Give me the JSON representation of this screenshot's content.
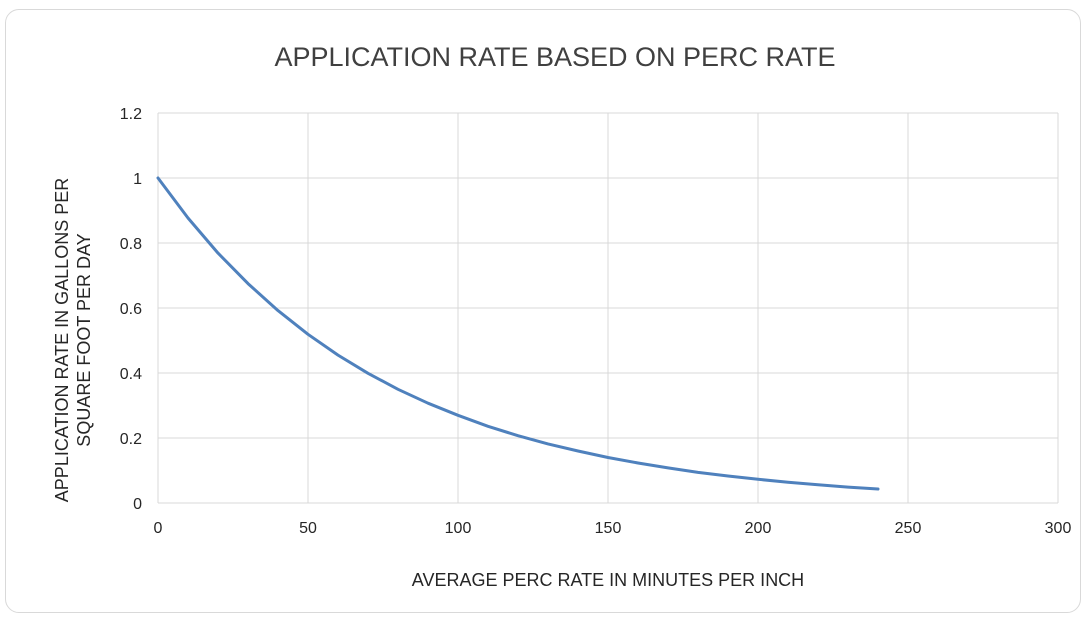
{
  "chart_data": {
    "type": "line",
    "title": "APPLICATION RATE BASED ON PERC RATE",
    "xlabel": "AVERAGE PERC RATE IN MINUTES PER INCH",
    "ylabel_lines": [
      "APPLICATION RATE IN GALLONS PER",
      "SQUARE FOOT PER DAY"
    ],
    "xlim": [
      0,
      300
    ],
    "ylim": [
      0,
      1.2
    ],
    "x_ticks": [
      "0",
      "50",
      "100",
      "150",
      "200",
      "250",
      "300"
    ],
    "y_ticks": [
      "0",
      "0.2",
      "0.4",
      "0.6",
      "0.8",
      "1",
      "1.2"
    ],
    "grid": true,
    "legend": "none",
    "series": [
      {
        "color": "#4f81bd",
        "x": [
          0,
          10,
          20,
          30,
          40,
          50,
          60,
          70,
          80,
          90,
          100,
          110,
          120,
          130,
          140,
          150,
          160,
          170,
          180,
          190,
          200,
          210,
          220,
          230,
          240
        ],
        "y": [
          1.0,
          0.877,
          0.769,
          0.675,
          0.592,
          0.519,
          0.455,
          0.399,
          0.35,
          0.307,
          0.27,
          0.236,
          0.207,
          0.182,
          0.16,
          0.14,
          0.123,
          0.108,
          0.094,
          0.083,
          0.073,
          0.064,
          0.056,
          0.049,
          0.043
        ]
      }
    ]
  }
}
